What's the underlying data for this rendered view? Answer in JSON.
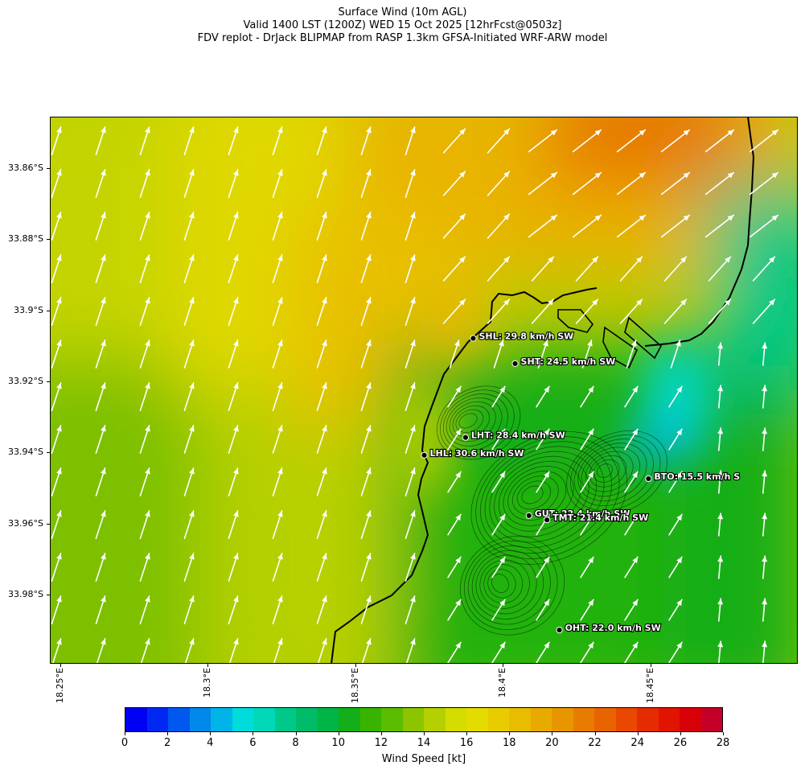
{
  "title": {
    "line1": "Surface Wind (10m AGL)",
    "line2": "Valid 1400 LST (1200Z) WED 15 Oct 2025 [12hrFcst@0503z]",
    "line3": "FDV replot - DrJack BLIPMAP from RASP 1.3km GFSA-Initiated WRF-ARW model"
  },
  "map": {
    "lat_labels": [
      "33.86°S",
      "33.88°S",
      "33.9°S",
      "33.92°S",
      "33.94°S",
      "33.96°S",
      "33.98°S"
    ],
    "lon_labels": [
      "18.25°E",
      "18.3°E",
      "18.35°E",
      "18.4°E",
      "18.45°E"
    ],
    "extent": {
      "lon_min": 18.2465,
      "lon_max": 18.5,
      "lat_north": -33.8455,
      "lat_south": -33.9995
    },
    "stations": [
      {
        "code": "SHL",
        "label": "SHL: 29.8 km/h SW",
        "lon": 18.39,
        "lat": -33.9079,
        "speed_kmh": 29.8,
        "dir": "SW"
      },
      {
        "code": "SHT",
        "label": "SHT: 24.5 km/h SW",
        "lon": 18.4042,
        "lat": -33.915,
        "speed_kmh": 24.5,
        "dir": "SW"
      },
      {
        "code": "LHT",
        "label": "LHT: 28.4 km/h SW",
        "lon": 18.3874,
        "lat": -33.9358,
        "speed_kmh": 28.4,
        "dir": "SW"
      },
      {
        "code": "LHL",
        "label": "LHL: 30.6 km/h SW",
        "lon": 18.3734,
        "lat": -33.9408,
        "speed_kmh": 30.6,
        "dir": "SW"
      },
      {
        "code": "BTO",
        "label": "BTO: 15.5 km/h S",
        "lon": 18.4494,
        "lat": -33.9474,
        "speed_kmh": 15.5,
        "dir": "S"
      },
      {
        "code": "GUT",
        "label": "GUT: 22.4 km/h SW",
        "lon": 18.4089,
        "lat": -33.9578,
        "speed_kmh": 22.4,
        "dir": "SW"
      },
      {
        "code": "TMT",
        "label": "TMT: 21.4 km/h SW",
        "lon": 18.415,
        "lat": -33.959,
        "speed_kmh": 21.4,
        "dir": "SW"
      },
      {
        "code": "OHT",
        "label": "OHT: 22.0 km/h SW",
        "lon": 18.4192,
        "lat": -33.99,
        "speed_kmh": 22.0,
        "dir": "SW"
      }
    ]
  },
  "colorbar": {
    "title": "Wind Speed [kt]",
    "min": 0,
    "max": 28,
    "step": 1,
    "tick_labels": [
      "0",
      "2",
      "4",
      "6",
      "8",
      "10",
      "12",
      "14",
      "16",
      "18",
      "20",
      "22",
      "24",
      "26",
      "28"
    ],
    "colors": [
      "#0000f5",
      "#0028f2",
      "#0058ee",
      "#0088ea",
      "#00b4e8",
      "#00dcdc",
      "#00d8b8",
      "#00c888",
      "#00bc68",
      "#00b446",
      "#14ae18",
      "#38b400",
      "#5cbc00",
      "#8cc400",
      "#b4d000",
      "#d4dc00",
      "#e4dc00",
      "#e8cc00",
      "#e8bc00",
      "#e8aa00",
      "#e89600",
      "#e87c00",
      "#e86400",
      "#e84800",
      "#e42c00",
      "#e01400",
      "#d80008",
      "#c40028"
    ]
  }
}
